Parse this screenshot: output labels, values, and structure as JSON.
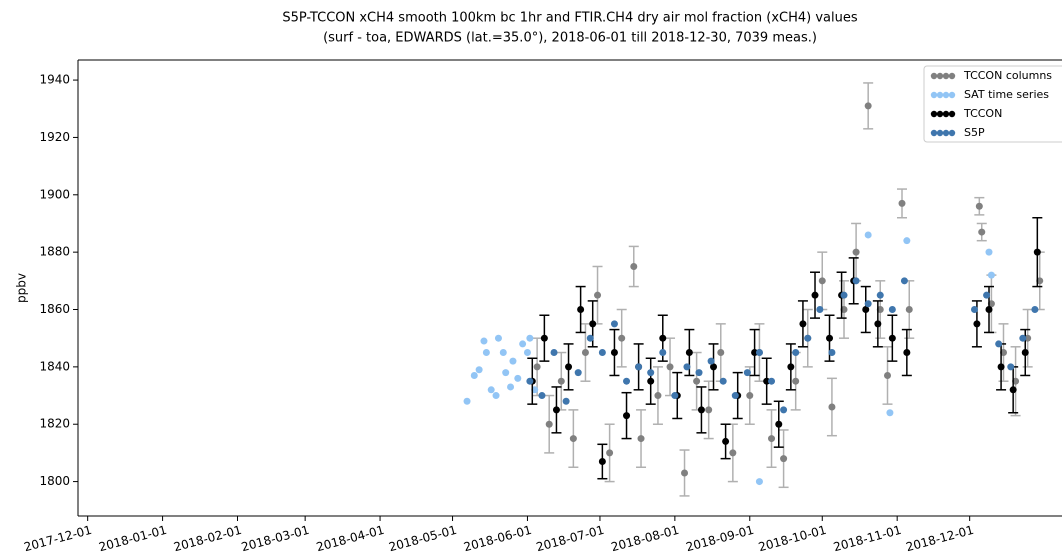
{
  "chart_data": {
    "type": "scatter",
    "title": "S5P-TCCON xCH4 smooth 100km bc 1hr and FTIR.CH4  dry air mol fraction (xCH4) values",
    "subtitle": "(surf - toa, EDWARDS (lat.=35.0°), 2018-06-01 till 2018-12-30, 7039 meas.)",
    "ylabel": "ppbv",
    "xlim": [
      "2017-11-27",
      "2019-01-08"
    ],
    "xticks": [
      "2017-12-01",
      "2018-01-01",
      "2018-02-01",
      "2018-03-01",
      "2018-04-01",
      "2018-05-01",
      "2018-06-01",
      "2018-07-01",
      "2018-08-01",
      "2018-09-01",
      "2018-10-01",
      "2018-11-01",
      "2018-12-01"
    ],
    "ylim": [
      1788,
      1947
    ],
    "yticks": [
      1800,
      1820,
      1840,
      1860,
      1880,
      1900,
      1920,
      1940
    ],
    "legend": "upper right",
    "series": [
      {
        "name": "TCCON columns",
        "color": "#808080",
        "error_color": "#b0b0b0",
        "x": [
          "2018-06-05",
          "2018-06-10",
          "2018-06-15",
          "2018-06-20",
          "2018-06-25",
          "2018-06-30",
          "2018-07-05",
          "2018-07-10",
          "2018-07-15",
          "2018-07-18",
          "2018-07-25",
          "2018-07-30",
          "2018-08-05",
          "2018-08-10",
          "2018-08-15",
          "2018-08-20",
          "2018-08-25",
          "2018-09-01",
          "2018-09-05",
          "2018-09-10",
          "2018-09-15",
          "2018-09-20",
          "2018-09-25",
          "2018-10-01",
          "2018-10-05",
          "2018-10-10",
          "2018-10-15",
          "2018-10-20",
          "2018-10-25",
          "2018-10-28",
          "2018-11-03",
          "2018-11-06",
          "2018-12-05",
          "2018-12-06",
          "2018-12-10",
          "2018-12-15",
          "2018-12-20",
          "2018-12-25",
          "2018-12-30"
        ],
        "values": [
          1840,
          1820,
          1835,
          1815,
          1845,
          1865,
          1810,
          1850,
          1875,
          1815,
          1830,
          1840,
          1803,
          1835,
          1825,
          1845,
          1810,
          1830,
          1845,
          1815,
          1808,
          1835,
          1850,
          1870,
          1826,
          1860,
          1880,
          1931,
          1860,
          1837,
          1897,
          1860,
          1896,
          1887,
          1862,
          1845,
          1835,
          1850,
          1870
        ],
        "errors": [
          10,
          10,
          10,
          10,
          10,
          10,
          10,
          10,
          7,
          10,
          10,
          10,
          8,
          10,
          10,
          10,
          10,
          10,
          10,
          10,
          10,
          10,
          10,
          10,
          10,
          10,
          10,
          8,
          10,
          10,
          5,
          10,
          3,
          3,
          10,
          10,
          12,
          10,
          10
        ]
      },
      {
        "name": "SAT time series",
        "color": "#92c5f5",
        "x": [
          "2018-05-07",
          "2018-05-10",
          "2018-05-12",
          "2018-05-14",
          "2018-05-15",
          "2018-05-17",
          "2018-05-19",
          "2018-05-20",
          "2018-05-22",
          "2018-05-23",
          "2018-05-25",
          "2018-05-26",
          "2018-05-28",
          "2018-05-30",
          "2018-06-01",
          "2018-06-02",
          "2018-06-04",
          "2018-09-05",
          "2018-10-20",
          "2018-10-29",
          "2018-11-05",
          "2018-12-09",
          "2018-12-10"
        ],
        "values": [
          1828,
          1837,
          1839,
          1849,
          1845,
          1832,
          1830,
          1850,
          1845,
          1838,
          1833,
          1842,
          1836,
          1848,
          1845,
          1850,
          1832,
          1800,
          1886,
          1824,
          1884,
          1880,
          1872
        ]
      },
      {
        "name": "TCCON",
        "color": "#000000",
        "error_color": "#000000",
        "x": [
          "2018-06-03",
          "2018-06-08",
          "2018-06-13",
          "2018-06-18",
          "2018-06-23",
          "2018-06-28",
          "2018-07-02",
          "2018-07-07",
          "2018-07-12",
          "2018-07-17",
          "2018-07-22",
          "2018-07-27",
          "2018-08-02",
          "2018-08-07",
          "2018-08-12",
          "2018-08-17",
          "2018-08-22",
          "2018-08-27",
          "2018-09-03",
          "2018-09-08",
          "2018-09-13",
          "2018-09-18",
          "2018-09-23",
          "2018-09-28",
          "2018-10-04",
          "2018-10-09",
          "2018-10-14",
          "2018-10-19",
          "2018-10-24",
          "2018-10-30",
          "2018-11-05",
          "2018-12-04",
          "2018-12-09",
          "2018-12-14",
          "2018-12-19",
          "2018-12-24",
          "2018-12-29"
        ],
        "values": [
          1835,
          1850,
          1825,
          1840,
          1860,
          1855,
          1807,
          1845,
          1823,
          1840,
          1835,
          1850,
          1830,
          1845,
          1825,
          1840,
          1814,
          1830,
          1845,
          1835,
          1820,
          1840,
          1855,
          1865,
          1850,
          1865,
          1870,
          1860,
          1855,
          1850,
          1845,
          1855,
          1860,
          1840,
          1832,
          1845,
          1880
        ],
        "errors": [
          8,
          8,
          8,
          8,
          8,
          8,
          6,
          8,
          8,
          8,
          8,
          8,
          8,
          8,
          8,
          8,
          6,
          8,
          8,
          8,
          8,
          8,
          8,
          8,
          8,
          8,
          8,
          8,
          8,
          8,
          8,
          8,
          8,
          8,
          8,
          8,
          12
        ]
      },
      {
        "name": "S5P",
        "color": "#3f76ad",
        "x": [
          "2018-06-02",
          "2018-06-07",
          "2018-06-12",
          "2018-06-17",
          "2018-06-22",
          "2018-06-27",
          "2018-07-02",
          "2018-07-07",
          "2018-07-12",
          "2018-07-17",
          "2018-07-22",
          "2018-07-27",
          "2018-08-01",
          "2018-08-06",
          "2018-08-11",
          "2018-08-16",
          "2018-08-21",
          "2018-08-26",
          "2018-08-31",
          "2018-09-05",
          "2018-09-10",
          "2018-09-15",
          "2018-09-20",
          "2018-09-25",
          "2018-09-30",
          "2018-10-05",
          "2018-10-10",
          "2018-10-15",
          "2018-10-20",
          "2018-10-25",
          "2018-10-30",
          "2018-11-04",
          "2018-12-03",
          "2018-12-08",
          "2018-12-13",
          "2018-12-18",
          "2018-12-23",
          "2018-12-28"
        ],
        "values": [
          1835,
          1830,
          1845,
          1828,
          1838,
          1850,
          1845,
          1855,
          1835,
          1840,
          1838,
          1845,
          1830,
          1840,
          1838,
          1842,
          1835,
          1830,
          1838,
          1845,
          1835,
          1825,
          1845,
          1850,
          1860,
          1845,
          1865,
          1870,
          1862,
          1865,
          1860,
          1870,
          1860,
          1865,
          1848,
          1840,
          1850,
          1860
        ]
      }
    ]
  }
}
